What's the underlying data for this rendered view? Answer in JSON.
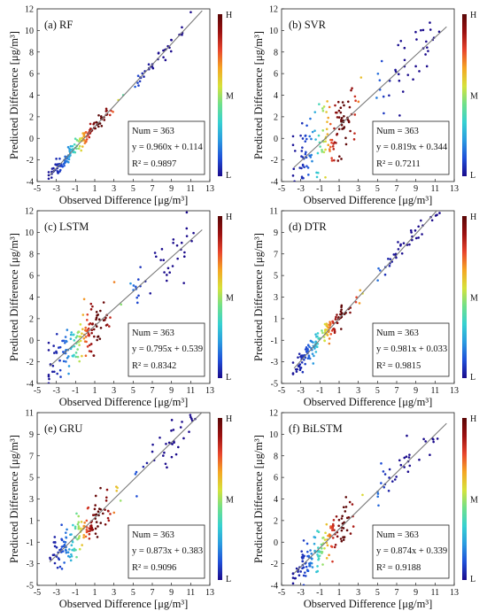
{
  "colors": {
    "colormap": [
      "#1a0a8c",
      "#1f4fd8",
      "#2a9be0",
      "#36d1d1",
      "#6fe08a",
      "#d6e23a",
      "#f5a623",
      "#e8452c",
      "#9c1010",
      "#5a0606"
    ],
    "fit_line": "#7a7a7a",
    "axes": "#222222"
  },
  "shared": {
    "xlabel": "Observed Difference [μg/m³]",
    "ylabel": "Predicted Difference [μg/m³]",
    "colorbar_labels": [
      "H",
      "M",
      "L"
    ]
  },
  "chart_data": [
    {
      "type": "scatter",
      "title": "(a) RF",
      "xlim": [
        -5,
        13
      ],
      "ylim": [
        -4,
        12
      ],
      "xticks": [
        -5,
        -3,
        -1,
        1,
        3,
        5,
        7,
        9,
        11,
        13
      ],
      "yticks": [
        -4,
        -2,
        0,
        2,
        4,
        6,
        8,
        10,
        12
      ],
      "fit": {
        "slope": 0.96,
        "intercept": 0.114
      },
      "stats": {
        "num": "Num = 363",
        "eq": "y = 0.960x + 0.114",
        "r2": "R² = 0.9897"
      },
      "spread": 0.35
    },
    {
      "type": "scatter",
      "title": "(b) SVR",
      "xlim": [
        -5,
        13
      ],
      "ylim": [
        -4,
        12
      ],
      "xticks": [
        -5,
        -3,
        -1,
        1,
        3,
        5,
        7,
        9,
        11,
        13
      ],
      "yticks": [
        -4,
        -2,
        0,
        2,
        4,
        6,
        8,
        10,
        12
      ],
      "fit": {
        "slope": 0.819,
        "intercept": 0.344
      },
      "stats": {
        "num": "Num = 363",
        "eq": "y = 0.819x + 0.344",
        "r2": "R² = 0.7211"
      },
      "spread": 1.6
    },
    {
      "type": "scatter",
      "title": "(c) LSTM",
      "xlim": [
        -5,
        13
      ],
      "ylim": [
        -4,
        12
      ],
      "xticks": [
        -5,
        -3,
        -1,
        1,
        3,
        5,
        7,
        9,
        11,
        13
      ],
      "yticks": [
        -4,
        -2,
        0,
        2,
        4,
        6,
        8,
        10,
        12
      ],
      "fit": {
        "slope": 0.795,
        "intercept": 0.539
      },
      "stats": {
        "num": "Num = 363",
        "eq": "y = 0.795x + 0.539",
        "r2": "R² = 0.8342"
      },
      "spread": 1.2
    },
    {
      "type": "scatter",
      "title": "(d) DTR",
      "xlim": [
        -5,
        13
      ],
      "ylim": [
        -5,
        11
      ],
      "xticks": [
        -5,
        -3,
        -1,
        1,
        3,
        5,
        7,
        9,
        11,
        13
      ],
      "yticks": [
        -5,
        -3,
        -1,
        1,
        3,
        5,
        7,
        9,
        11
      ],
      "fit": {
        "slope": 0.981,
        "intercept": 0.033
      },
      "stats": {
        "num": "Num = 363",
        "eq": "y = 0.981x + 0.033",
        "r2": "R² = 0.9815"
      },
      "spread": 0.45
    },
    {
      "type": "scatter",
      "title": "(e) GRU",
      "xlim": [
        -5,
        13
      ],
      "ylim": [
        -5,
        11
      ],
      "xticks": [
        -5,
        -3,
        -1,
        1,
        3,
        5,
        7,
        9,
        11,
        13
      ],
      "yticks": [
        -5,
        -3,
        -1,
        1,
        3,
        5,
        7,
        9,
        11
      ],
      "fit": {
        "slope": 0.873,
        "intercept": 0.383
      },
      "stats": {
        "num": "Num = 363",
        "eq": "y = 0.873x + 0.383",
        "r2": "R² = 0.9096"
      },
      "spread": 0.9
    },
    {
      "type": "scatter",
      "title": "(f) BiLSTM",
      "xlim": [
        -5,
        13
      ],
      "ylim": [
        -4,
        12
      ],
      "xticks": [
        -5,
        -3,
        -1,
        1,
        3,
        5,
        7,
        9,
        11,
        13
      ],
      "yticks": [
        -4,
        -2,
        0,
        2,
        4,
        6,
        8,
        10,
        12
      ],
      "fit": {
        "slope": 0.874,
        "intercept": 0.339
      },
      "stats": {
        "num": "Num = 363",
        "eq": "y = 0.874x + 0.339",
        "r2": "R² = 0.9188"
      },
      "spread": 0.9
    }
  ]
}
